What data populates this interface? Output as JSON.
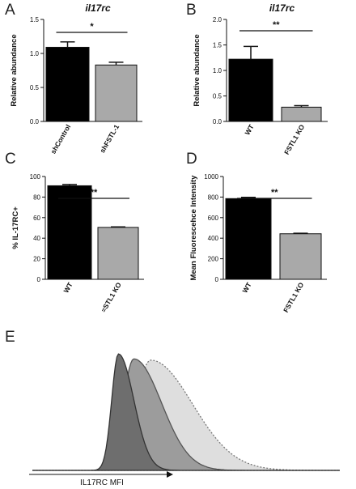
{
  "chart_data": [
    {
      "panel": "A",
      "type": "bar",
      "title": "il17rc",
      "ylabel": "Relative abundance",
      "categories": [
        "shControl",
        "shFSTL-1"
      ],
      "values": [
        1.09,
        0.83
      ],
      "errors": [
        0.08,
        0.04
      ],
      "colors": [
        "#000000",
        "#a9a9a9"
      ],
      "ylim": [
        0,
        1.5
      ],
      "yticks": [
        0.0,
        0.5,
        1.0,
        1.5
      ],
      "ytick_labels": [
        "0.0",
        "0.5",
        "1.0",
        "1.5"
      ],
      "significance": "*",
      "rotate_categories": true
    },
    {
      "panel": "B",
      "type": "bar",
      "title": "il17rc",
      "ylabel": "Relative abundance",
      "categories": [
        "WT",
        "FSTL1 KO"
      ],
      "values": [
        1.22,
        0.28
      ],
      "errors": [
        0.25,
        0.03
      ],
      "colors": [
        "#000000",
        "#a9a9a9"
      ],
      "ylim": [
        0,
        2.0
      ],
      "yticks": [
        0.0,
        0.5,
        1.0,
        1.5,
        2.0
      ],
      "ytick_labels": [
        "0.0",
        "0.5",
        "1.0",
        "1.5",
        "2.0"
      ],
      "significance": "**",
      "rotate_categories": true
    },
    {
      "panel": "C",
      "type": "bar",
      "title": "",
      "ylabel": "% IL-17RC+",
      "categories": [
        "WT",
        "FSTL1 KO"
      ],
      "category_labels": [
        "WT",
        "=STL1 KO"
      ],
      "values": [
        91,
        50.5
      ],
      "errors": [
        1.2,
        0.5
      ],
      "colors": [
        "#000000",
        "#a9a9a9"
      ],
      "ylim": [
        0,
        100
      ],
      "yticks": [
        0,
        20,
        40,
        60,
        80,
        100
      ],
      "ytick_labels": [
        "0",
        "20",
        "40",
        "60",
        "80",
        "100"
      ],
      "significance": "**",
      "rotate_categories": true
    },
    {
      "panel": "D",
      "type": "bar",
      "title": "",
      "ylabel": "Mean Fluorescehce Intensity",
      "categories": [
        "WT",
        "FSTL1 KO"
      ],
      "values": [
        785,
        443
      ],
      "errors": [
        12,
        5
      ],
      "colors": [
        "#000000",
        "#a9a9a9"
      ],
      "ylim": [
        0,
        1000
      ],
      "yticks": [
        0,
        200,
        400,
        600,
        800,
        1000
      ],
      "ytick_labels": [
        "0",
        "200",
        "400",
        "600",
        "800",
        "1000"
      ],
      "significance": "**",
      "rotate_categories": true
    },
    {
      "panel": "E",
      "type": "area",
      "title": "",
      "xlabel": "IL17RC MFI",
      "ylabel": "",
      "series": [
        {
          "style": "isotype",
          "fill": "#6e6e6e",
          "stroke": "#333333",
          "peak_x": 0.28,
          "width_left": 0.022,
          "width_right": 0.05,
          "height": 0.94
        },
        {
          "style": "kO",
          "fill": "#9c9c9c",
          "stroke": "#555555",
          "peak_x": 0.33,
          "width_left": 0.035,
          "width_right": 0.09,
          "height": 0.9
        },
        {
          "style": "wt-dotted",
          "fill": "#dedede",
          "stroke": "#777777",
          "peak_x": 0.385,
          "width_left": 0.05,
          "width_right": 0.135,
          "height": 0.89
        }
      ]
    }
  ],
  "panel_letters": [
    "A",
    "B",
    "C",
    "D",
    "E"
  ]
}
